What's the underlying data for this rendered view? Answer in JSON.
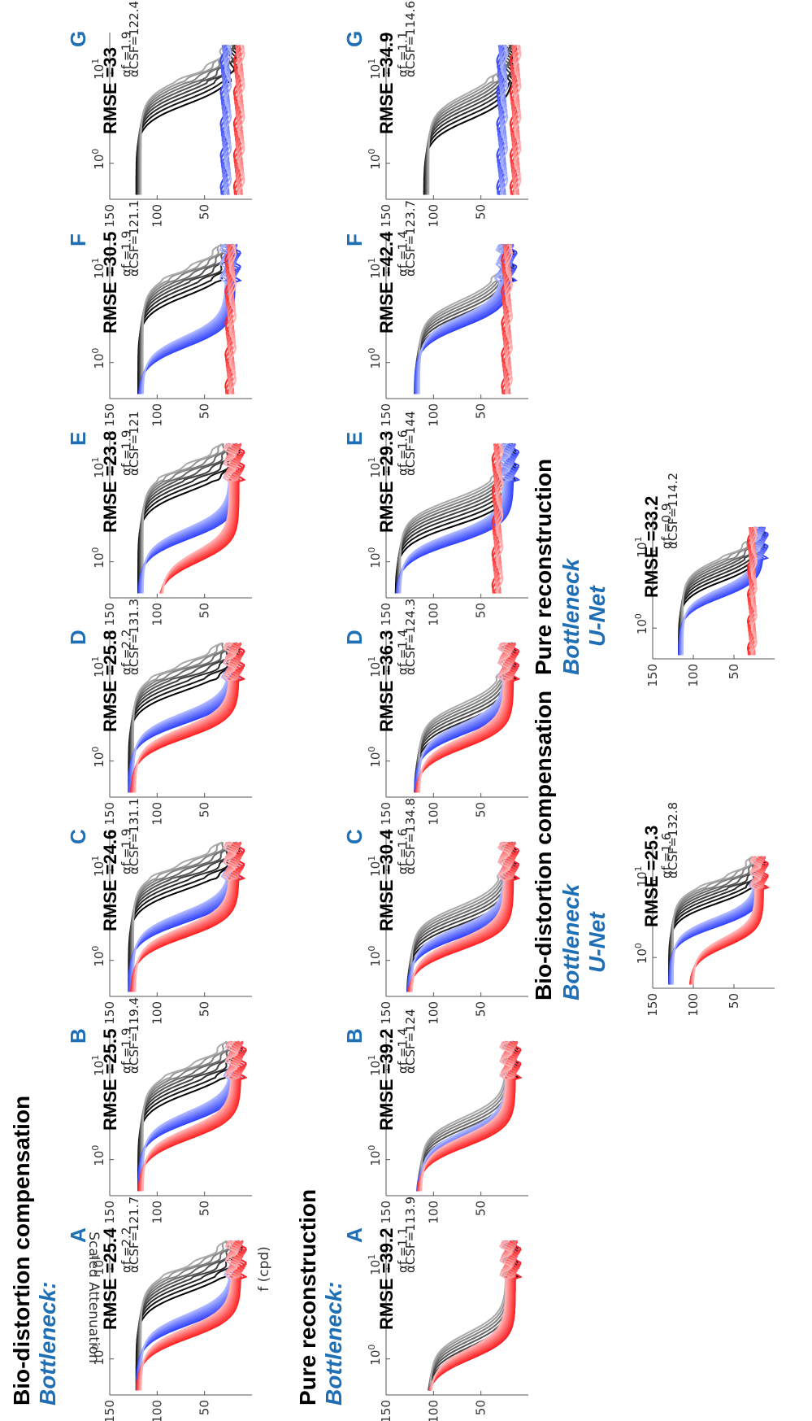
{
  "headers": {
    "bio_distortion": "Bio-distortion compensation",
    "pure_reconstruction": "Pure reconstruction",
    "bottleneck_colon": "Bottleneck:",
    "bottleneck": "Bottleneck",
    "unet": "U-Net"
  },
  "axis_labels": {
    "x": "f (cpd)",
    "y": "Scaled Attenuation"
  },
  "chart_data": [
    {
      "type": "line",
      "row": "Bio-distortion compensation",
      "model": "Bottleneck",
      "panel": "A",
      "rmse_label": "RMSE =25.4",
      "alpha_f": "2.2",
      "alpha_csf": "121.7",
      "ylim": [
        0,
        150
      ],
      "yticks": [
        50,
        100,
        150
      ],
      "xticks": [
        "10^0",
        "10^1"
      ],
      "xscale": "log",
      "series": [
        {
          "color": "#000000",
          "plateau": 122,
          "drop_at": 5.5
        },
        {
          "color": "#3344ff",
          "plateau": 122,
          "drop_at": 2.4
        },
        {
          "color": "#ff2222",
          "plateau": 122,
          "drop_at": 1.7
        }
      ],
      "min_level": 12
    },
    {
      "type": "line",
      "row": "Bio-distortion compensation",
      "model": "Bottleneck",
      "panel": "B",
      "rmse_label": "RMSE =25.5",
      "alpha_f": "1.9",
      "alpha_csf": "119.4",
      "ylim": [
        0,
        150
      ],
      "yticks": [
        50,
        100,
        150
      ],
      "xticks": [
        "10^0",
        "10^1"
      ],
      "xscale": "log",
      "series": [
        {
          "color": "#000000",
          "plateau": 120,
          "drop_at": 5.5
        },
        {
          "color": "#3344ff",
          "plateau": 120,
          "drop_at": 2.6
        },
        {
          "color": "#ff2222",
          "plateau": 120,
          "drop_at": 1.7
        }
      ],
      "min_level": 12
    },
    {
      "type": "line",
      "row": "Bio-distortion compensation",
      "model": "Bottleneck",
      "panel": "C",
      "rmse_label": "RMSE =24.6",
      "alpha_f": "1.9",
      "alpha_csf": "131.1",
      "ylim": [
        0,
        150
      ],
      "yticks": [
        50,
        100,
        150
      ],
      "xticks": [
        "10^0",
        "10^1"
      ],
      "xscale": "log",
      "series": [
        {
          "color": "#000000",
          "plateau": 130,
          "drop_at": 6.0
        },
        {
          "color": "#3344ff",
          "plateau": 130,
          "drop_at": 2.6
        },
        {
          "color": "#ff2222",
          "plateau": 128,
          "drop_at": 1.8
        }
      ],
      "min_level": 14
    },
    {
      "type": "line",
      "row": "Bio-distortion compensation",
      "model": "Bottleneck",
      "panel": "D",
      "rmse_label": "RMSE =25.8",
      "alpha_f": "2.2",
      "alpha_csf": "131.3",
      "ylim": [
        0,
        150
      ],
      "yticks": [
        50,
        100,
        150
      ],
      "xticks": [
        "10^0",
        "10^1"
      ],
      "xscale": "log",
      "series": [
        {
          "color": "#000000",
          "plateau": 130,
          "drop_at": 6.0
        },
        {
          "color": "#3344ff",
          "plateau": 130,
          "drop_at": 2.6
        },
        {
          "color": "#ff2222",
          "plateau": 128,
          "drop_at": 1.8
        }
      ],
      "min_level": 14
    },
    {
      "type": "line",
      "row": "Bio-distortion compensation",
      "model": "Bottleneck",
      "panel": "E",
      "rmse_label": "RMSE =23.8",
      "alpha_f": "1.9",
      "alpha_csf": "121",
      "ylim": [
        0,
        150
      ],
      "yticks": [
        50,
        100,
        150
      ],
      "xticks": [
        "10^0",
        "10^1"
      ],
      "xscale": "log",
      "series": [
        {
          "color": "#000000",
          "plateau": 120,
          "drop_at": 6.0
        },
        {
          "color": "#3344ff",
          "plateau": 120,
          "drop_at": 1.8
        },
        {
          "color": "#ff2222",
          "plateau": 100,
          "drop_at": 1.0
        }
      ],
      "min_level": 14
    },
    {
      "type": "line",
      "row": "Bio-distortion compensation",
      "model": "Bottleneck",
      "panel": "F",
      "rmse_label": "RMSE =30.5",
      "alpha_f": "1.9",
      "alpha_csf": "121.1",
      "ylim": [
        0,
        150
      ],
      "yticks": [
        50,
        100,
        150
      ],
      "xticks": [
        "10^0",
        "10^1"
      ],
      "xscale": "log",
      "series": [
        {
          "color": "#000000",
          "plateau": 120,
          "drop_at": 5.5
        },
        {
          "color": "#3344ff",
          "plateau": 120,
          "drop_at": 1.5
        },
        {
          "color": "#ff2222",
          "plateau": 25,
          "drop_at": 0
        }
      ],
      "min_level": 18
    },
    {
      "type": "line",
      "row": "Bio-distortion compensation",
      "model": "Bottleneck",
      "panel": "G",
      "rmse_label": "RMSE =33",
      "alpha_f": "1.9",
      "alpha_csf": "122.4",
      "ylim": [
        0,
        150
      ],
      "yticks": [
        50,
        100,
        150
      ],
      "xticks": [
        "10^0",
        "10^1"
      ],
      "xscale": "log",
      "series": [
        {
          "color": "#000000",
          "plateau": 122,
          "drop_at": 4.5
        },
        {
          "color": "#3344ff",
          "plateau": 30,
          "drop_at": 0
        },
        {
          "color": "#ff2222",
          "plateau": 16,
          "drop_at": 0
        }
      ],
      "min_level": 16
    },
    {
      "type": "line",
      "row": "Pure reconstruction",
      "model": "Bottleneck",
      "panel": "A",
      "rmse_label": "RMSE =39.2",
      "alpha_f": "1.1",
      "alpha_csf": "113.9",
      "ylim": [
        0,
        150
      ],
      "yticks": [
        50,
        100,
        150
      ],
      "xticks": [
        "10^0",
        "10^1"
      ],
      "xscale": "log",
      "series": [
        {
          "color": "#000000",
          "plateau": 108,
          "drop_at": 1.0
        },
        {
          "color": "#3344ff",
          "plateau": 108,
          "drop_at": 1.0
        },
        {
          "color": "#ff2222",
          "plateau": 108,
          "drop_at": 1.0
        }
      ],
      "min_level": 14
    },
    {
      "type": "line",
      "row": "Pure reconstruction",
      "model": "Bottleneck",
      "panel": "B",
      "rmse_label": "RMSE =39.2",
      "alpha_f": "1.4",
      "alpha_csf": "124",
      "ylim": [
        0,
        150
      ],
      "yticks": [
        50,
        100,
        150
      ],
      "xticks": [
        "10^0",
        "10^1"
      ],
      "xscale": "log",
      "series": [
        {
          "color": "#000000",
          "plateau": 118,
          "drop_at": 1.5
        },
        {
          "color": "#3344ff",
          "plateau": 118,
          "drop_at": 1.6
        },
        {
          "color": "#ff2222",
          "plateau": 118,
          "drop_at": 1.4
        }
      ],
      "min_level": 14
    },
    {
      "type": "line",
      "row": "Pure reconstruction",
      "model": "Bottleneck",
      "panel": "C",
      "rmse_label": "RMSE =30.4",
      "alpha_f": "1.6",
      "alpha_csf": "134.8",
      "ylim": [
        0,
        150
      ],
      "yticks": [
        50,
        100,
        150
      ],
      "xticks": [
        "10^0",
        "10^1"
      ],
      "xscale": "log",
      "series": [
        {
          "color": "#000000",
          "plateau": 128,
          "drop_at": 2.0
        },
        {
          "color": "#3344ff",
          "plateau": 128,
          "drop_at": 1.8
        },
        {
          "color": "#ff2222",
          "plateau": 128,
          "drop_at": 1.3
        }
      ],
      "min_level": 16
    },
    {
      "type": "line",
      "row": "Pure reconstruction",
      "model": "Bottleneck",
      "panel": "D",
      "rmse_label": "RMSE =36.3",
      "alpha_f": "1.4",
      "alpha_csf": "124.3",
      "ylim": [
        0,
        150
      ],
      "yticks": [
        50,
        100,
        150
      ],
      "xticks": [
        "10^0",
        "10^1"
      ],
      "xscale": "log",
      "series": [
        {
          "color": "#000000",
          "plateau": 120,
          "drop_at": 2.2
        },
        {
          "color": "#3344ff",
          "plateau": 120,
          "drop_at": 2.0
        },
        {
          "color": "#ff2222",
          "plateau": 120,
          "drop_at": 1.4
        }
      ],
      "min_level": 16
    },
    {
      "type": "line",
      "row": "Pure reconstruction",
      "model": "Bottleneck",
      "panel": "E",
      "rmse_label": "RMSE =29.3",
      "alpha_f": "1.6",
      "alpha_csf": "144",
      "ylim": [
        0,
        150
      ],
      "yticks": [
        50,
        100,
        150
      ],
      "xticks": [
        "10^0",
        "10^1"
      ],
      "xscale": "log",
      "series": [
        {
          "color": "#000000",
          "plateau": 140,
          "drop_at": 2.5
        },
        {
          "color": "#3344ff",
          "plateau": 140,
          "drop_at": 1.6
        },
        {
          "color": "#ff2222",
          "plateau": 35,
          "drop_at": 0
        }
      ],
      "min_level": 16
    },
    {
      "type": "line",
      "row": "Pure reconstruction",
      "model": "Bottleneck",
      "panel": "F",
      "rmse_label": "RMSE =42.4",
      "alpha_f": "1.4",
      "alpha_csf": "123.7",
      "ylim": [
        0,
        150
      ],
      "yticks": [
        50,
        100,
        150
      ],
      "xticks": [
        "10^0",
        "10^1"
      ],
      "xscale": "log",
      "series": [
        {
          "color": "#000000",
          "plateau": 120,
          "drop_at": 2.5
        },
        {
          "color": "#3344ff",
          "plateau": 120,
          "drop_at": 2.5
        },
        {
          "color": "#ff2222",
          "plateau": 25,
          "drop_at": 0
        }
      ],
      "min_level": 18
    },
    {
      "type": "line",
      "row": "Pure reconstruction",
      "model": "Bottleneck",
      "panel": "G",
      "rmse_label": "RMSE =34.9",
      "alpha_f": "1.1",
      "alpha_csf": "114.6",
      "ylim": [
        0,
        150
      ],
      "yticks": [
        50,
        100,
        150
      ],
      "xticks": [
        "10^0",
        "10^1"
      ],
      "xscale": "log",
      "series": [
        {
          "color": "#000000",
          "plateau": 110,
          "drop_at": 3.0
        },
        {
          "color": "#3344ff",
          "plateau": 30,
          "drop_at": 0
        },
        {
          "color": "#ff2222",
          "plateau": 16,
          "drop_at": 0
        }
      ],
      "min_level": 16
    },
    {
      "type": "line",
      "row": "Bio-distortion compensation",
      "model": "U-Net",
      "panel": "",
      "rmse_label": "RMSE =25.3",
      "alpha_f": "1.6",
      "alpha_csf": "132.8",
      "ylim": [
        0,
        150
      ],
      "yticks": [
        50,
        100,
        150
      ],
      "xticks": [
        "10^0",
        "10^1"
      ],
      "xscale": "log",
      "series": [
        {
          "color": "#000000",
          "plateau": 130,
          "drop_at": 5.0
        },
        {
          "color": "#3344ff",
          "plateau": 130,
          "drop_at": 2.5
        },
        {
          "color": "#ff2222",
          "plateau": 105,
          "drop_at": 1.4
        }
      ],
      "min_level": 14
    },
    {
      "type": "line",
      "row": "Pure reconstruction",
      "model": "U-Net",
      "panel": "",
      "rmse_label": "RMSE =33.2",
      "alpha_f": "0.9",
      "alpha_csf": "114.2",
      "ylim": [
        0,
        150
      ],
      "yticks": [
        50,
        100,
        150
      ],
      "xticks": [
        "10^0",
        "10^1"
      ],
      "xscale": "log",
      "series": [
        {
          "color": "#000000",
          "plateau": 118,
          "drop_at": 4.0
        },
        {
          "color": "#3344ff",
          "plateau": 118,
          "drop_at": 2.5
        },
        {
          "color": "#ff2222",
          "plateau": 30,
          "drop_at": 0
        }
      ],
      "min_level": 14
    }
  ]
}
